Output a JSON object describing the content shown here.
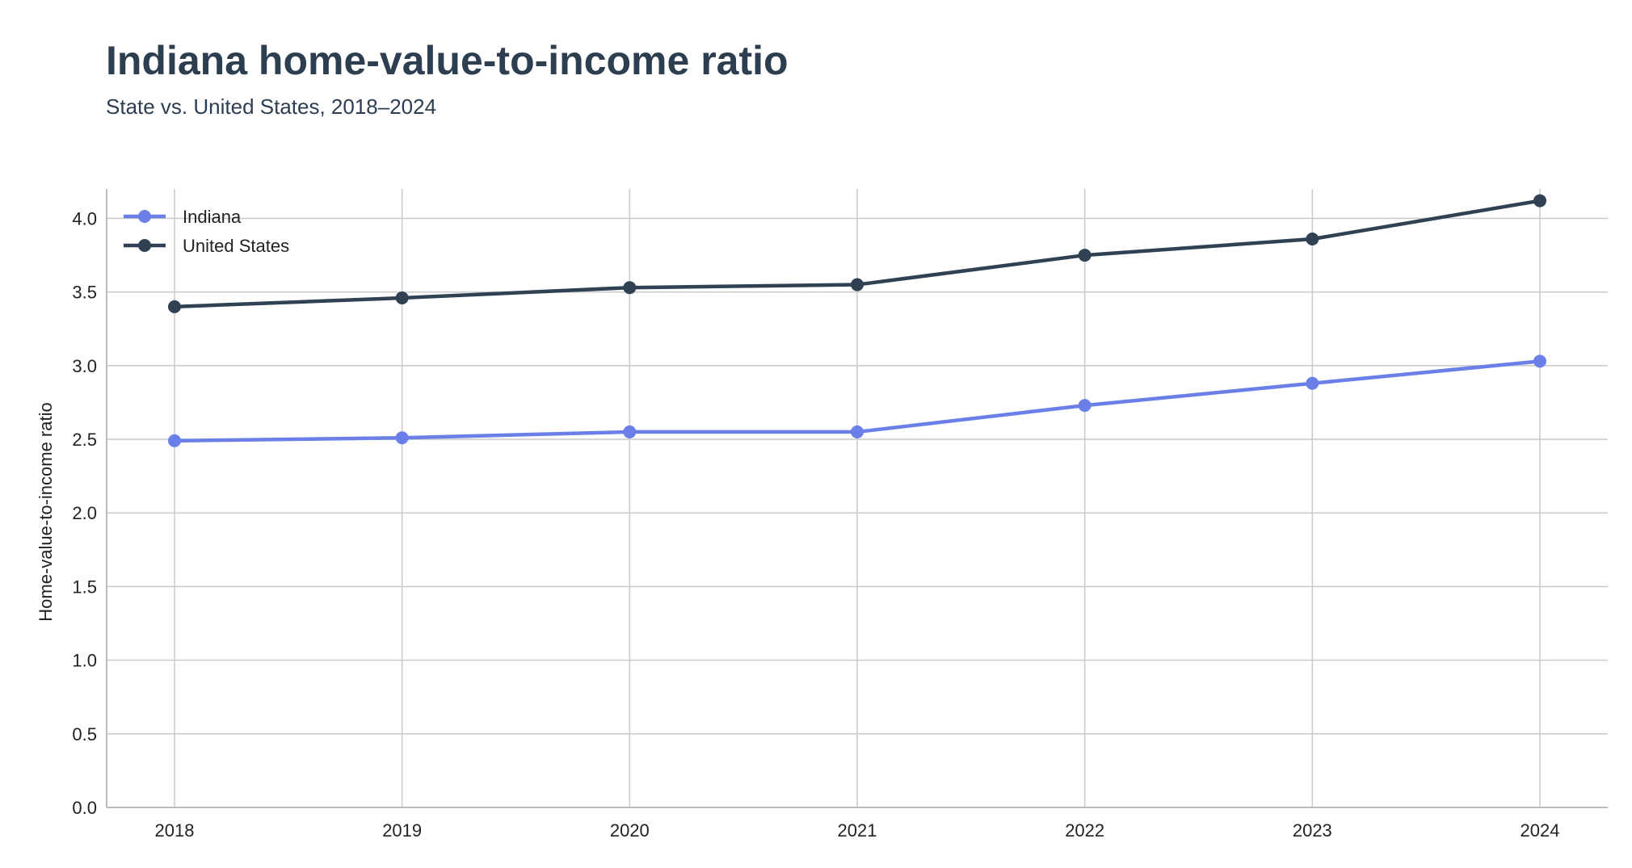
{
  "title": "Indiana home-value-to-income ratio",
  "subtitle": "State vs. United States, 2018–2024",
  "chart_data": {
    "type": "line",
    "ylabel": "Home-value-to-income ratio",
    "xlabel": "",
    "x": [
      "2018",
      "2019",
      "2020",
      "2021",
      "2022",
      "2023",
      "2024"
    ],
    "ylim": [
      0,
      4.2
    ],
    "yticks": [
      "0.0",
      "0.5",
      "1.0",
      "1.5",
      "2.0",
      "2.5",
      "3.0",
      "3.5",
      "4.0"
    ],
    "grid": true,
    "legend_position": "top-left",
    "series": [
      {
        "name": "Indiana",
        "color": "#6b7fe8",
        "values": [
          2.49,
          2.51,
          2.55,
          2.55,
          2.73,
          2.88,
          3.03
        ]
      },
      {
        "name": "United States",
        "color": "#2f4153",
        "values": [
          3.4,
          3.46,
          3.53,
          3.55,
          3.75,
          3.86,
          4.12
        ]
      }
    ]
  }
}
